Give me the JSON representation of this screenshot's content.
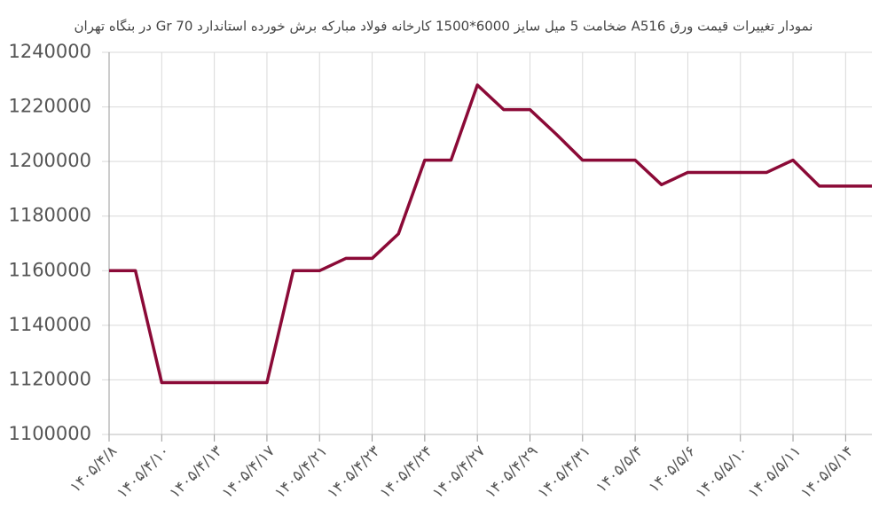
{
  "chart_data": {
    "type": "line",
    "title": "نمودار تغییرات قیمت ورق A516 ضخامت 5 میل سایز 6000*1500 کارخانه فولاد مبارکه برش خورده استاندارد Gr 70 در بنگاه تهران",
    "categories": [
      "۱۴۰۵/۴/۸",
      null,
      "۱۴۰۵/۴/۱۰",
      null,
      "۱۴۰۵/۴/۱۳",
      null,
      "۱۴۰۵/۴/۱۷",
      null,
      "۱۴۰۵/۴/۲۱",
      null,
      "۱۴۰۵/۴/۲۳",
      null,
      "۱۴۰۵/۴/۲۴",
      null,
      "۱۴۰۵/۴/۲۷",
      null,
      "۱۴۰۵/۴/۲۹",
      null,
      "۱۴۰۵/۴/۳۱",
      null,
      "۱۴۰۵/۵/۴",
      null,
      "۱۴۰۵/۵/۶",
      null,
      "۱۴۰۵/۵/۱۰",
      null,
      "۱۴۰۵/۵/۱۱",
      null,
      "۱۴۰۵/۵/۱۴",
      null
    ],
    "values": [
      1160000,
      1160000,
      1119000,
      1119000,
      1119000,
      1119000,
      1119000,
      1160000,
      1160000,
      1164500,
      1164500,
      1173500,
      1200500,
      1200500,
      1228000,
      1219000,
      1219000,
      1210000,
      1200500,
      1200500,
      1200500,
      1191500,
      1196000,
      1196000,
      1196000,
      1196000,
      1200500,
      1191000,
      1191000,
      1191000
    ],
    "color": "#8b0a37",
    "ylim": [
      1100000,
      1240000
    ],
    "yticks": [
      1100000,
      1120000,
      1140000,
      1160000,
      1180000,
      1200000,
      1220000,
      1240000
    ],
    "grid": true
  }
}
